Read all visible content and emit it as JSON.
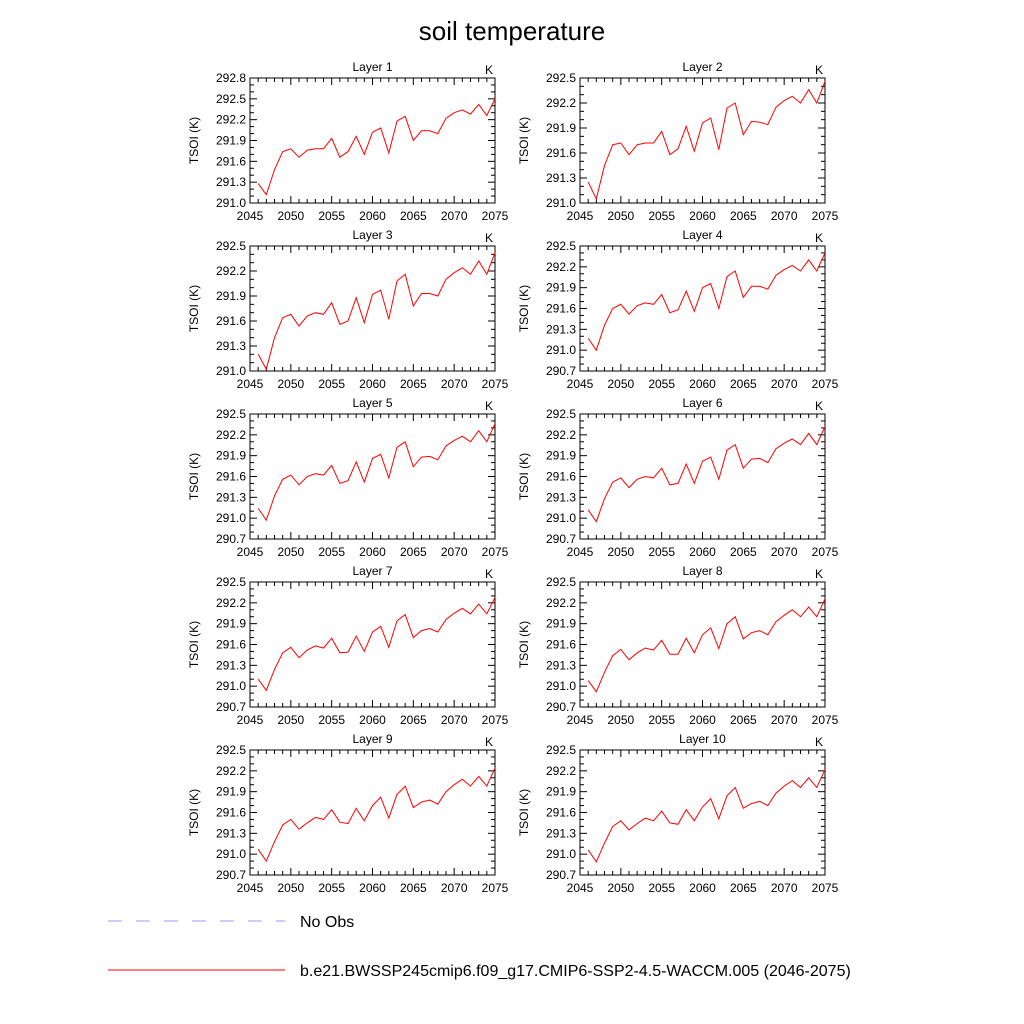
{
  "title": "soil temperature",
  "colors": {
    "model": "#ff0000",
    "obs": "#9999ff",
    "axis": "#000000"
  },
  "legend": {
    "obs_label": "No Obs",
    "model_label": "b.e21.BWSSP245cmip6.f09_g17.CMIP6-SSP2-4.5-WACCM.005 (2046-2075)"
  },
  "chart_data": [
    {
      "type": "line",
      "title": "Layer 1",
      "units_label": "K",
      "ylabel": "TSOI  (K)",
      "xlim": [
        2045,
        2075
      ],
      "ylim": [
        291.0,
        292.8
      ],
      "xticks": [
        "2045",
        "2050",
        "2055",
        "2060",
        "2065",
        "2070",
        "2075"
      ],
      "yticks": [
        "291.0",
        "291.3",
        "291.6",
        "291.9",
        "292.2",
        "292.5",
        "292.8"
      ],
      "series": [
        {
          "name": "b.e21.BWSSP245cmip6.f09_g17.CMIP6-SSP2-4.5-WACCM.005 (2046-2075)",
          "x": [
            2046,
            2047,
            2048,
            2049,
            2050,
            2051,
            2052,
            2053,
            2054,
            2055,
            2056,
            2057,
            2058,
            2059,
            2060,
            2061,
            2062,
            2063,
            2064,
            2065,
            2066,
            2067,
            2068,
            2069,
            2070,
            2071,
            2072,
            2073,
            2074,
            2075
          ],
          "values": [
            291.28,
            291.12,
            291.48,
            291.74,
            291.78,
            291.66,
            291.76,
            291.78,
            291.78,
            291.93,
            291.66,
            291.74,
            291.96,
            291.7,
            292.02,
            292.08,
            291.72,
            292.18,
            292.25,
            291.9,
            292.04,
            292.04,
            292.0,
            292.22,
            292.3,
            292.34,
            292.28,
            292.42,
            292.26,
            292.5
          ]
        }
      ]
    },
    {
      "type": "line",
      "title": "Layer 2",
      "units_label": "K",
      "ylabel": "TSOI  (K)",
      "xlim": [
        2045,
        2075
      ],
      "ylim": [
        291.0,
        292.5
      ],
      "xticks": [
        "2045",
        "2050",
        "2055",
        "2060",
        "2065",
        "2070",
        "2075"
      ],
      "yticks": [
        "291.0",
        "291.3",
        "291.6",
        "291.9",
        "292.2",
        "292.5"
      ],
      "series": [
        {
          "name": "b.e21.BWSSP245cmip6.f09_g17.CMIP6-SSP2-4.5-WACCM.005 (2046-2075)",
          "x": [
            2046,
            2047,
            2048,
            2049,
            2050,
            2051,
            2052,
            2053,
            2054,
            2055,
            2056,
            2057,
            2058,
            2059,
            2060,
            2061,
            2062,
            2063,
            2064,
            2065,
            2066,
            2067,
            2068,
            2069,
            2070,
            2071,
            2072,
            2073,
            2074,
            2075
          ],
          "values": [
            291.25,
            291.05,
            291.45,
            291.7,
            291.72,
            291.58,
            291.7,
            291.72,
            291.72,
            291.86,
            291.58,
            291.65,
            291.92,
            291.62,
            291.96,
            292.02,
            291.64,
            292.14,
            292.2,
            291.82,
            291.98,
            291.97,
            291.94,
            292.15,
            292.23,
            292.28,
            292.2,
            292.36,
            292.2,
            292.46
          ]
        }
      ]
    },
    {
      "type": "line",
      "title": "Layer 3",
      "units_label": "K",
      "ylabel": "TSOI  (K)",
      "xlim": [
        2045,
        2075
      ],
      "ylim": [
        291.0,
        292.5
      ],
      "xticks": [
        "2045",
        "2050",
        "2055",
        "2060",
        "2065",
        "2070",
        "2075"
      ],
      "yticks": [
        "291.0",
        "291.3",
        "291.6",
        "291.9",
        "292.2",
        "292.5"
      ],
      "series": [
        {
          "name": "b.e21.BWSSP245cmip6.f09_g17.CMIP6-SSP2-4.5-WACCM.005 (2046-2075)",
          "x": [
            2046,
            2047,
            2048,
            2049,
            2050,
            2051,
            2052,
            2053,
            2054,
            2055,
            2056,
            2057,
            2058,
            2059,
            2060,
            2061,
            2062,
            2063,
            2064,
            2065,
            2066,
            2067,
            2068,
            2069,
            2070,
            2071,
            2072,
            2073,
            2074,
            2075
          ],
          "values": [
            291.2,
            291.02,
            291.4,
            291.64,
            291.68,
            291.54,
            291.66,
            291.7,
            291.68,
            291.82,
            291.56,
            291.6,
            291.88,
            291.58,
            291.92,
            291.97,
            291.62,
            292.08,
            292.16,
            291.78,
            291.93,
            291.93,
            291.9,
            292.1,
            292.18,
            292.24,
            292.16,
            292.32,
            292.16,
            292.42
          ]
        }
      ]
    },
    {
      "type": "line",
      "title": "Layer 4",
      "units_label": "K",
      "ylabel": "TSOI  (K)",
      "xlim": [
        2045,
        2075
      ],
      "ylim": [
        290.7,
        292.5
      ],
      "xticks": [
        "2045",
        "2050",
        "2055",
        "2060",
        "2065",
        "2070",
        "2075"
      ],
      "yticks": [
        "290.7",
        "291.0",
        "291.3",
        "291.6",
        "291.9",
        "292.2",
        "292.5"
      ],
      "series": [
        {
          "name": "b.e21.BWSSP245cmip6.f09_g17.CMIP6-SSP2-4.5-WACCM.005 (2046-2075)",
          "x": [
            2046,
            2047,
            2048,
            2049,
            2050,
            2051,
            2052,
            2053,
            2054,
            2055,
            2056,
            2057,
            2058,
            2059,
            2060,
            2061,
            2062,
            2063,
            2064,
            2065,
            2066,
            2067,
            2068,
            2069,
            2070,
            2071,
            2072,
            2073,
            2074,
            2075
          ],
          "values": [
            291.17,
            291.0,
            291.36,
            291.6,
            291.66,
            291.52,
            291.64,
            291.68,
            291.66,
            291.8,
            291.54,
            291.58,
            291.85,
            291.56,
            291.9,
            291.96,
            291.6,
            292.06,
            292.14,
            291.76,
            291.92,
            291.92,
            291.88,
            292.08,
            292.16,
            292.22,
            292.14,
            292.3,
            292.14,
            292.4
          ]
        }
      ]
    },
    {
      "type": "line",
      "title": "Layer 5",
      "units_label": "K",
      "ylabel": "TSOI  (K)",
      "xlim": [
        2045,
        2075
      ],
      "ylim": [
        290.7,
        292.5
      ],
      "xticks": [
        "2045",
        "2050",
        "2055",
        "2060",
        "2065",
        "2070",
        "2075"
      ],
      "yticks": [
        "290.7",
        "291.0",
        "291.3",
        "291.6",
        "291.9",
        "292.2",
        "292.5"
      ],
      "series": [
        {
          "name": "b.e21.BWSSP245cmip6.f09_g17.CMIP6-SSP2-4.5-WACCM.005 (2046-2075)",
          "x": [
            2046,
            2047,
            2048,
            2049,
            2050,
            2051,
            2052,
            2053,
            2054,
            2055,
            2056,
            2057,
            2058,
            2059,
            2060,
            2061,
            2062,
            2063,
            2064,
            2065,
            2066,
            2067,
            2068,
            2069,
            2070,
            2071,
            2072,
            2073,
            2074,
            2075
          ],
          "values": [
            291.14,
            290.97,
            291.32,
            291.56,
            291.62,
            291.48,
            291.6,
            291.64,
            291.62,
            291.76,
            291.5,
            291.54,
            291.81,
            291.52,
            291.86,
            291.92,
            291.58,
            292.02,
            292.1,
            291.74,
            291.88,
            291.89,
            291.84,
            292.04,
            292.12,
            292.18,
            292.1,
            292.26,
            292.1,
            292.36
          ]
        }
      ]
    },
    {
      "type": "line",
      "title": "Layer 6",
      "units_label": "K",
      "ylabel": "TSOI  (K)",
      "xlim": [
        2045,
        2075
      ],
      "ylim": [
        290.7,
        292.5
      ],
      "xticks": [
        "2045",
        "2050",
        "2055",
        "2060",
        "2065",
        "2070",
        "2075"
      ],
      "yticks": [
        "290.7",
        "291.0",
        "291.3",
        "291.6",
        "291.9",
        "292.2",
        "292.5"
      ],
      "series": [
        {
          "name": "b.e21.BWSSP245cmip6.f09_g17.CMIP6-SSP2-4.5-WACCM.005 (2046-2075)",
          "x": [
            2046,
            2047,
            2048,
            2049,
            2050,
            2051,
            2052,
            2053,
            2054,
            2055,
            2056,
            2057,
            2058,
            2059,
            2060,
            2061,
            2062,
            2063,
            2064,
            2065,
            2066,
            2067,
            2068,
            2069,
            2070,
            2071,
            2072,
            2073,
            2074,
            2075
          ],
          "values": [
            291.12,
            290.95,
            291.28,
            291.52,
            291.58,
            291.44,
            291.56,
            291.6,
            291.58,
            291.72,
            291.48,
            291.5,
            291.78,
            291.5,
            291.82,
            291.88,
            291.56,
            291.98,
            292.06,
            291.72,
            291.85,
            291.86,
            291.8,
            292.0,
            292.08,
            292.14,
            292.06,
            292.22,
            292.06,
            292.32
          ]
        }
      ]
    },
    {
      "type": "line",
      "title": "Layer 7",
      "units_label": "K",
      "ylabel": "TSOI  (K)",
      "xlim": [
        2045,
        2075
      ],
      "ylim": [
        290.7,
        292.5
      ],
      "xticks": [
        "2045",
        "2050",
        "2055",
        "2060",
        "2065",
        "2070",
        "2075"
      ],
      "yticks": [
        "290.7",
        "291.0",
        "291.3",
        "291.6",
        "291.9",
        "292.2",
        "292.5"
      ],
      "series": [
        {
          "name": "b.e21.BWSSP245cmip6.f09_g17.CMIP6-SSP2-4.5-WACCM.005 (2046-2075)",
          "x": [
            2046,
            2047,
            2048,
            2049,
            2050,
            2051,
            2052,
            2053,
            2054,
            2055,
            2056,
            2057,
            2058,
            2059,
            2060,
            2061,
            2062,
            2063,
            2064,
            2065,
            2066,
            2067,
            2068,
            2069,
            2070,
            2071,
            2072,
            2073,
            2074,
            2075
          ],
          "values": [
            291.1,
            290.94,
            291.24,
            291.48,
            291.56,
            291.41,
            291.52,
            291.58,
            291.55,
            291.69,
            291.48,
            291.49,
            291.72,
            291.5,
            291.78,
            291.86,
            291.56,
            291.94,
            292.03,
            291.7,
            291.8,
            291.83,
            291.78,
            291.96,
            292.05,
            292.12,
            292.04,
            292.18,
            292.04,
            292.28
          ]
        }
      ]
    },
    {
      "type": "line",
      "title": "Layer 8",
      "units_label": "K",
      "ylabel": "TSOI  (K)",
      "xlim": [
        2045,
        2075
      ],
      "ylim": [
        290.7,
        292.5
      ],
      "xticks": [
        "2045",
        "2050",
        "2055",
        "2060",
        "2065",
        "2070",
        "2075"
      ],
      "yticks": [
        "290.7",
        "291.0",
        "291.3",
        "291.6",
        "291.9",
        "292.2",
        "292.5"
      ],
      "series": [
        {
          "name": "b.e21.BWSSP245cmip6.f09_g17.CMIP6-SSP2-4.5-WACCM.005 (2046-2075)",
          "x": [
            2046,
            2047,
            2048,
            2049,
            2050,
            2051,
            2052,
            2053,
            2054,
            2055,
            2056,
            2057,
            2058,
            2059,
            2060,
            2061,
            2062,
            2063,
            2064,
            2065,
            2066,
            2067,
            2068,
            2069,
            2070,
            2071,
            2072,
            2073,
            2074,
            2075
          ],
          "values": [
            291.08,
            290.92,
            291.2,
            291.44,
            291.53,
            291.38,
            291.48,
            291.55,
            291.52,
            291.66,
            291.46,
            291.46,
            291.69,
            291.48,
            291.74,
            291.84,
            291.54,
            291.9,
            292.0,
            291.68,
            291.77,
            291.8,
            291.74,
            291.93,
            292.02,
            292.1,
            292.0,
            292.14,
            292.0,
            292.26
          ]
        }
      ]
    },
    {
      "type": "line",
      "title": "Layer 9",
      "units_label": "K",
      "ylabel": "TSOI  (K)",
      "xlim": [
        2045,
        2075
      ],
      "ylim": [
        290.7,
        292.5
      ],
      "xticks": [
        "2045",
        "2050",
        "2055",
        "2060",
        "2065",
        "2070",
        "2075"
      ],
      "yticks": [
        "290.7",
        "291.0",
        "291.3",
        "291.6",
        "291.9",
        "292.2",
        "292.5"
      ],
      "series": [
        {
          "name": "b.e21.BWSSP245cmip6.f09_g17.CMIP6-SSP2-4.5-WACCM.005 (2046-2075)",
          "x": [
            2046,
            2047,
            2048,
            2049,
            2050,
            2051,
            2052,
            2053,
            2054,
            2055,
            2056,
            2057,
            2058,
            2059,
            2060,
            2061,
            2062,
            2063,
            2064,
            2065,
            2066,
            2067,
            2068,
            2069,
            2070,
            2071,
            2072,
            2073,
            2074,
            2075
          ],
          "values": [
            291.07,
            290.9,
            291.18,
            291.42,
            291.5,
            291.36,
            291.45,
            291.53,
            291.5,
            291.64,
            291.46,
            291.44,
            291.66,
            291.48,
            291.7,
            291.82,
            291.52,
            291.86,
            291.98,
            291.67,
            291.75,
            291.78,
            291.72,
            291.9,
            292.0,
            292.08,
            291.98,
            292.12,
            291.98,
            292.24
          ]
        }
      ]
    },
    {
      "type": "line",
      "title": "Layer 10",
      "units_label": "K",
      "ylabel": "TSOI  (K)",
      "xlim": [
        2045,
        2075
      ],
      "ylim": [
        290.7,
        292.5
      ],
      "xticks": [
        "2045",
        "2050",
        "2055",
        "2060",
        "2065",
        "2070",
        "2075"
      ],
      "yticks": [
        "290.7",
        "291.0",
        "291.3",
        "291.6",
        "291.9",
        "292.2",
        "292.5"
      ],
      "series": [
        {
          "name": "b.e21.BWSSP245cmip6.f09_g17.CMIP6-SSP2-4.5-WACCM.005 (2046-2075)",
          "x": [
            2046,
            2047,
            2048,
            2049,
            2050,
            2051,
            2052,
            2053,
            2054,
            2055,
            2056,
            2057,
            2058,
            2059,
            2060,
            2061,
            2062,
            2063,
            2064,
            2065,
            2066,
            2067,
            2068,
            2069,
            2070,
            2071,
            2072,
            2073,
            2074,
            2075
          ],
          "values": [
            291.06,
            290.89,
            291.16,
            291.4,
            291.48,
            291.35,
            291.44,
            291.52,
            291.48,
            291.62,
            291.45,
            291.43,
            291.64,
            291.48,
            291.68,
            291.8,
            291.51,
            291.84,
            291.96,
            291.66,
            291.73,
            291.76,
            291.7,
            291.88,
            291.98,
            292.06,
            291.96,
            292.1,
            291.96,
            292.22
          ]
        }
      ]
    }
  ]
}
